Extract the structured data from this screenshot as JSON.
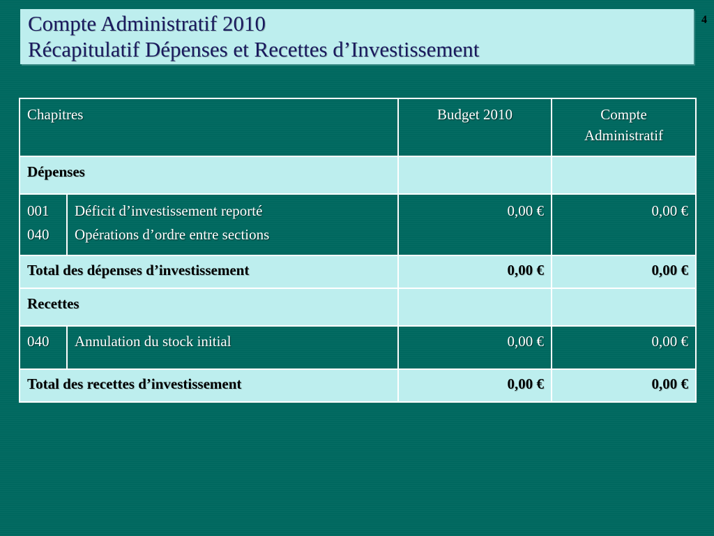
{
  "slide": {
    "title_line1": "Compte Administratif 2010",
    "title_line2": "Récapitulatif Dépenses  et Recettes d’Investissement",
    "page_number": "4"
  },
  "table": {
    "headers": {
      "chapitres": "Chapitres",
      "budget": "Budget 2010",
      "compte_line1": "Compte",
      "compte_line2": "Administratif"
    },
    "depenses": {
      "label": "Dépenses",
      "codes": [
        "001",
        "040"
      ],
      "labels": [
        "Déficit d’investissement reporté",
        "Opérations d’ordre entre sections"
      ],
      "budget": "0,00 €",
      "compte": "0,00 €",
      "total_label": "Total des dépenses d’investissement",
      "total_budget": "0,00 €",
      "total_compte": "0,00 €"
    },
    "recettes": {
      "label": "Recettes",
      "code": "040",
      "item_label": "Annulation du stock initial",
      "budget": "0,00 €",
      "compte": "0,00 €",
      "total_label": "Total des recettes d’investissement",
      "total_budget": "0,00 €",
      "total_compte": "0,00 €"
    }
  }
}
